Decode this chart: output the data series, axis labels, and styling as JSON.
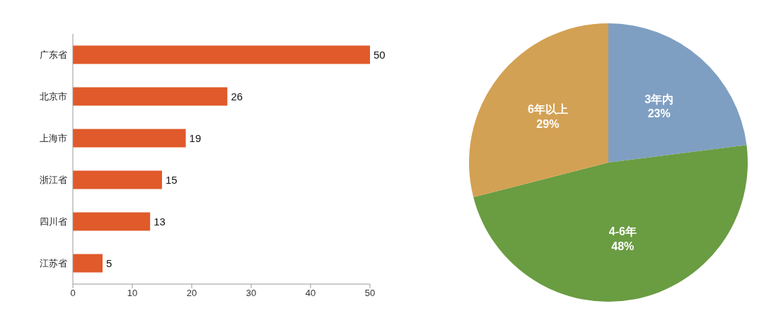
{
  "chart_data": [
    {
      "type": "bar",
      "orientation": "horizontal",
      "categories": [
        "广东省",
        "北京市",
        "上海市",
        "浙江省",
        "四川省",
        "江苏省"
      ],
      "values": [
        50,
        26,
        19,
        15,
        13,
        5
      ],
      "color": "#e05a2b",
      "xlim": [
        0,
        50
      ],
      "xticks": [
        0,
        10,
        20,
        30,
        40,
        50
      ],
      "data_labels": true
    },
    {
      "type": "pie",
      "categories": [
        "3年内",
        "4-6年",
        "6年以上"
      ],
      "values": [
        23,
        48,
        29
      ],
      "colors": [
        "#7f9fc2",
        "#6a9c42",
        "#d3a153"
      ],
      "value_labels": [
        "23%",
        "48%",
        "29%"
      ]
    }
  ]
}
